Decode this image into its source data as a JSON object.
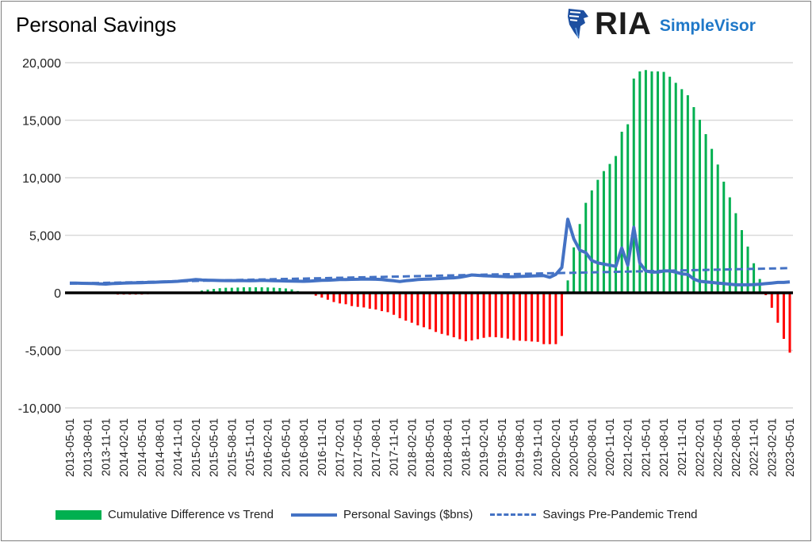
{
  "header": {
    "title": "Personal Savings",
    "logo_text": "RIA",
    "logo_subtext": "SimpleVisor"
  },
  "colors": {
    "positive_bar": "#00b050",
    "negative_bar": "#ff0000",
    "savings_line": "#4472c4",
    "trend_line": "#4472c4",
    "zero_line": "#000000",
    "grid": "#d9d9d9",
    "logo_blue": "#1f78c8"
  },
  "chart_data": {
    "type": "bar",
    "title": "Personal Savings",
    "x_frequency": "monthly",
    "x_tick_labels": [
      "2013-05-01",
      "2013-08-01",
      "2013-11-01",
      "2014-02-01",
      "2014-05-01",
      "2014-08-01",
      "2014-11-01",
      "2015-02-01",
      "2015-05-01",
      "2015-08-01",
      "2015-11-01",
      "2016-02-01",
      "2016-05-01",
      "2016-08-01",
      "2016-11-01",
      "2017-02-01",
      "2017-05-01",
      "2017-08-01",
      "2017-11-01",
      "2018-02-01",
      "2018-05-01",
      "2018-08-01",
      "2018-11-01",
      "2019-02-01",
      "2019-05-01",
      "2019-08-01",
      "2019-11-01",
      "2020-02-01",
      "2020-05-01",
      "2020-08-01",
      "2020-11-01",
      "2021-02-01",
      "2021-05-01",
      "2021-08-01",
      "2021-11-01",
      "2022-02-01",
      "2022-05-01",
      "2022-08-01",
      "2022-11-01",
      "2023-02-01",
      "2023-05-01"
    ],
    "y_tick_labels": [
      "20,000",
      "15,000",
      "10,000",
      "5,000",
      "0",
      "-5,000",
      "-10,000"
    ],
    "y_ticks": [
      20000,
      15000,
      10000,
      5000,
      0,
      -5000,
      -10000
    ],
    "ylim": [
      -10000,
      20000
    ],
    "grid": "horizontal",
    "legend_position": "bottom",
    "series": [
      {
        "name": "Cumulative Difference vs Trend",
        "type": "bar",
        "values": [
          0,
          0,
          0,
          0,
          0,
          0,
          0,
          -100,
          -150,
          -150,
          -150,
          -150,
          -150,
          -120,
          -80,
          0,
          0,
          0,
          0,
          0,
          0,
          50,
          200,
          280,
          340,
          400,
          440,
          440,
          460,
          480,
          480,
          480,
          480,
          470,
          450,
          420,
          380,
          300,
          150,
          0,
          0,
          -250,
          -410,
          -600,
          -800,
          -920,
          -990,
          -1150,
          -1220,
          -1270,
          -1380,
          -1450,
          -1590,
          -1680,
          -1910,
          -2210,
          -2420,
          -2600,
          -2830,
          -2990,
          -3170,
          -3400,
          -3570,
          -3700,
          -3860,
          -4030,
          -4210,
          -4140,
          -4030,
          -3910,
          -3840,
          -3860,
          -3910,
          -3980,
          -4120,
          -4160,
          -4190,
          -4230,
          -4260,
          -4460,
          -4460,
          -4460,
          -3750,
          1080,
          3950,
          5980,
          7820,
          8900,
          9820,
          10580,
          11200,
          11890,
          14000,
          14650,
          18620,
          19240,
          19360,
          19240,
          19240,
          19200,
          18780,
          18250,
          17700,
          17170,
          16140,
          15040,
          13790,
          12510,
          11150,
          9660,
          8300,
          6920,
          5450,
          4020,
          2570,
          1200,
          -200,
          -1300,
          -2600,
          -4000,
          -5200
        ]
      },
      {
        "name": "Personal Savings ($bns)",
        "type": "line",
        "values": [
          850,
          840,
          830,
          820,
          810,
          780,
          760,
          800,
          820,
          850,
          860,
          870,
          880,
          900,
          920,
          940,
          960,
          970,
          1000,
          1050,
          1100,
          1150,
          1120,
          1100,
          1080,
          1070,
          1060,
          1060,
          1070,
          1060,
          1050,
          1060,
          1080,
          1070,
          1050,
          1040,
          1030,
          1020,
          1010,
          1000,
          1020,
          1050,
          1080,
          1100,
          1120,
          1150,
          1160,
          1170,
          1180,
          1200,
          1190,
          1180,
          1150,
          1100,
          1050,
          980,
          1050,
          1100,
          1150,
          1180,
          1200,
          1220,
          1250,
          1280,
          1300,
          1350,
          1450,
          1550,
          1520,
          1480,
          1460,
          1440,
          1420,
          1400,
          1400,
          1420,
          1440,
          1460,
          1480,
          1500,
          1350,
          1600,
          2200,
          6400,
          4700,
          3700,
          3500,
          2800,
          2600,
          2500,
          2400,
          2300,
          3900,
          2400,
          5700,
          2600,
          1900,
          1800,
          1800,
          1900,
          1900,
          1800,
          1650,
          1600,
          1200,
          1000,
          950,
          900,
          850,
          800,
          750,
          700,
          700,
          700,
          720,
          750,
          800,
          850,
          900,
          900,
          950
        ]
      },
      {
        "name": "Savings Pre-Pandemic Trend",
        "type": "dashed-line",
        "start_value": 800,
        "end_value": 2150
      }
    ]
  },
  "legend": [
    {
      "label": "Cumulative Difference vs Trend",
      "style": "bar"
    },
    {
      "label": "Personal Savings ($bns)",
      "style": "line"
    },
    {
      "label": "Savings Pre-Pandemic Trend",
      "style": "dashed"
    }
  ]
}
